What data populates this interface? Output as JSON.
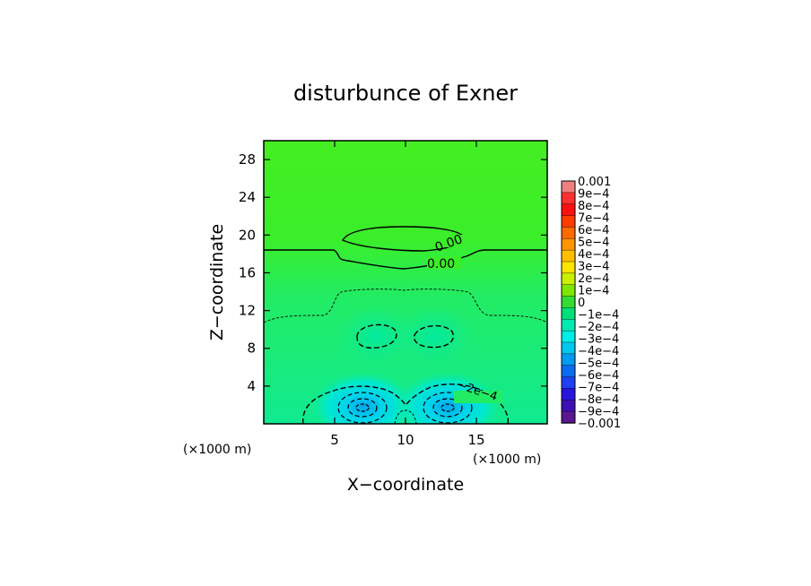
{
  "chart_data": {
    "type": "heatmap",
    "title": "disturbunce of Exner",
    "xlabel": "X−coordinate",
    "ylabel": "Z−coordinate",
    "x_unit": "(×1000 m)",
    "y_unit": "(×1000 m)",
    "xlim": [
      0,
      20
    ],
    "ylim": [
      0,
      30
    ],
    "x_ticks": [
      5,
      10,
      15
    ],
    "y_ticks": [
      4,
      8,
      12,
      16,
      20,
      24,
      28
    ],
    "colorbar": {
      "labels": [
        "0.001",
        "9e−4",
        "8e−4",
        "7e−4",
        "6e−4",
        "5e−4",
        "4e−4",
        "3e−4",
        "2e−4",
        "1e−4",
        "0",
        "−1e−4",
        "−2e−4",
        "−3e−4",
        "−4e−4",
        "−5e−4",
        "−6e−4",
        "−7e−4",
        "−8e−4",
        "−9e−4",
        "−0.001"
      ],
      "colors": [
        "#f08080",
        "#ff3030",
        "#ff1010",
        "#ff3c00",
        "#ff6a00",
        "#ff9500",
        "#ffbf00",
        "#ffe600",
        "#c8f000",
        "#7ee600",
        "#33dc33",
        "#00e07a",
        "#00eab4",
        "#00eee6",
        "#00c8f0",
        "#009cf0",
        "#0a6cf0",
        "#1e40f0",
        "#2814dc",
        "#3c10b4",
        "#5a1890"
      ]
    },
    "contour_labels": [
      "0.00",
      "0.00",
      "−2e−4"
    ],
    "features": [
      {
        "kind": "min",
        "x": 7,
        "z": 1.8
      },
      {
        "kind": "min",
        "x": 13,
        "z": 1.8
      }
    ],
    "colors": {
      "background_field": "#33ee22",
      "upper_field": "#44f020",
      "lower_field": "#10ec8c",
      "min_core": "#0ab4e8"
    }
  }
}
